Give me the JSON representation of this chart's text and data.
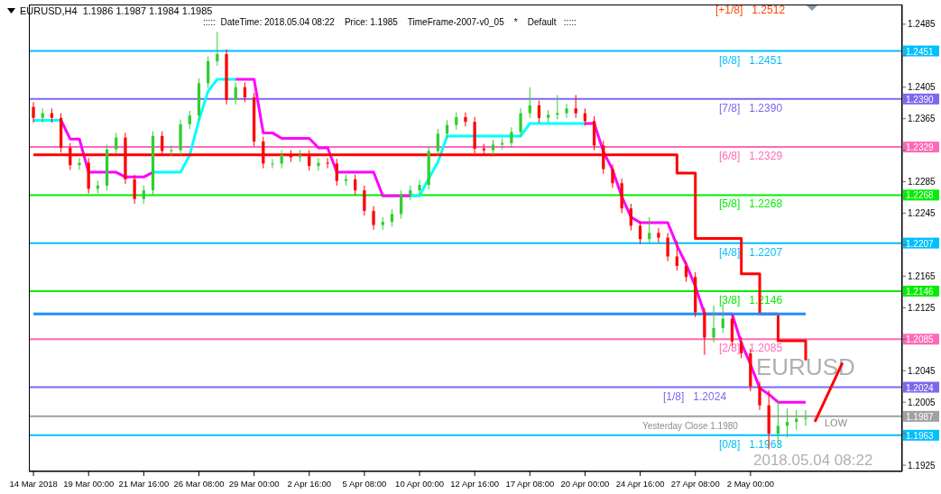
{
  "chart_data": {
    "type": "candlestick",
    "categories": [
      "14 Mar 2018",
      null,
      null,
      null,
      null,
      null,
      "19 Mar 00:00",
      null,
      null,
      null,
      null,
      null,
      "21 Mar 16:00",
      null,
      null,
      null,
      null,
      null,
      "26 Mar 08:00",
      null,
      null,
      null,
      null,
      null,
      "29 Mar 00:00",
      null,
      null,
      null,
      null,
      null,
      "2 Apr 16:00",
      null,
      null,
      null,
      null,
      null,
      "5 Apr 08:00",
      null,
      null,
      null,
      null,
      null,
      "10 Apr 00:00",
      null,
      null,
      null,
      null,
      null,
      "12 Apr 16:00",
      null,
      null,
      null,
      null,
      null,
      "17 Apr 08:00",
      null,
      null,
      null,
      null,
      null,
      "20 Apr 00:00",
      null,
      null,
      null,
      null,
      null,
      "24 Apr 16:00",
      null,
      null,
      null,
      null,
      null,
      "27 Apr 08:00",
      null,
      null,
      null,
      null,
      null,
      "2 May 00:00",
      null,
      null,
      null,
      null,
      null,
      null,
      null,
      null,
      null,
      null,
      null,
      null,
      null,
      null,
      null,
      null
    ],
    "ohlc": [
      [
        1.238,
        1.2386,
        1.236,
        1.2366
      ],
      [
        1.2366,
        1.2378,
        1.236,
        1.2372
      ],
      [
        1.2372,
        1.2378,
        1.236,
        1.2366
      ],
      [
        1.2366,
        1.2372,
        1.2322,
        1.2328
      ],
      [
        1.2328,
        1.2334,
        1.23,
        1.2306
      ],
      [
        1.2306,
        1.2315,
        1.23,
        1.2309
      ],
      [
        1.2309,
        1.2315,
        1.227,
        1.2276
      ],
      [
        1.2276,
        1.2286,
        1.227,
        1.228
      ],
      [
        1.228,
        1.2332,
        1.2274,
        1.2326
      ],
      [
        1.2326,
        1.2347,
        1.232,
        1.2341
      ],
      [
        1.2341,
        1.2347,
        1.2282,
        1.2288
      ],
      [
        1.2288,
        1.2294,
        1.2257,
        1.2263
      ],
      [
        1.2263,
        1.228,
        1.2257,
        1.2274
      ],
      [
        1.2274,
        1.2349,
        1.2268,
        1.2343
      ],
      [
        1.2343,
        1.2349,
        1.2318,
        1.2324
      ],
      [
        1.2324,
        1.2331,
        1.2318,
        1.2325
      ],
      [
        1.2325,
        1.2364,
        1.2319,
        1.2358
      ],
      [
        1.2358,
        1.2375,
        1.2352,
        1.2369
      ],
      [
        1.2369,
        1.2416,
        1.2363,
        1.241
      ],
      [
        1.241,
        1.2444,
        1.2404,
        1.2438
      ],
      [
        1.2438,
        1.2475,
        1.2432,
        1.2447
      ],
      [
        1.2447,
        1.2453,
        1.2383,
        1.2389
      ],
      [
        1.2389,
        1.2411,
        1.2383,
        1.2405
      ],
      [
        1.2405,
        1.2411,
        1.2386,
        1.2392
      ],
      [
        1.2392,
        1.2398,
        1.233,
        1.2336
      ],
      [
        1.2336,
        1.2342,
        1.2302,
        1.2308
      ],
      [
        1.2308,
        1.2314,
        1.2302,
        1.2308
      ],
      [
        1.2308,
        1.2325,
        1.2302,
        1.2319
      ],
      [
        1.2319,
        1.2325,
        1.231,
        1.2316
      ],
      [
        1.2316,
        1.2325,
        1.231,
        1.2319
      ],
      [
        1.2319,
        1.2325,
        1.2299,
        1.2305
      ],
      [
        1.2305,
        1.2315,
        1.2299,
        1.2309
      ],
      [
        1.2309,
        1.2315,
        1.2302,
        1.2308
      ],
      [
        1.2308,
        1.2314,
        1.228,
        1.2286
      ],
      [
        1.2286,
        1.2294,
        1.228,
        1.2288
      ],
      [
        1.2288,
        1.2294,
        1.2268,
        1.2274
      ],
      [
        1.2274,
        1.228,
        1.2242,
        1.2248
      ],
      [
        1.2248,
        1.2254,
        1.2224,
        1.223
      ],
      [
        1.223,
        1.224,
        1.2224,
        1.2234
      ],
      [
        1.2234,
        1.225,
        1.2228,
        1.2244
      ],
      [
        1.2244,
        1.2274,
        1.2238,
        1.2268
      ],
      [
        1.2268,
        1.228,
        1.2262,
        1.2274
      ],
      [
        1.2274,
        1.2287,
        1.2268,
        1.2281
      ],
      [
        1.2281,
        1.233,
        1.2275,
        1.2324
      ],
      [
        1.2324,
        1.2352,
        1.2318,
        1.2346
      ],
      [
        1.2346,
        1.2363,
        1.234,
        1.2357
      ],
      [
        1.2357,
        1.2373,
        1.2351,
        1.2367
      ],
      [
        1.2367,
        1.2373,
        1.2355,
        1.2361
      ],
      [
        1.2361,
        1.2367,
        1.2321,
        1.2327
      ],
      [
        1.2327,
        1.2333,
        1.2319,
        1.2325
      ],
      [
        1.2325,
        1.2338,
        1.2319,
        1.2332
      ],
      [
        1.2332,
        1.234,
        1.2326,
        1.2334
      ],
      [
        1.2334,
        1.2354,
        1.2328,
        1.2348
      ],
      [
        1.2348,
        1.2378,
        1.2342,
        1.2372
      ],
      [
        1.2372,
        1.2405,
        1.2366,
        1.2382
      ],
      [
        1.2382,
        1.2388,
        1.236,
        1.2366
      ],
      [
        1.2366,
        1.2376,
        1.236,
        1.237
      ],
      [
        1.237,
        1.2395,
        1.2364,
        1.2372
      ],
      [
        1.2372,
        1.2384,
        1.2366,
        1.2378
      ],
      [
        1.2378,
        1.2395,
        1.2366,
        1.2372
      ],
      [
        1.2372,
        1.2378,
        1.2356,
        1.2362
      ],
      [
        1.2362,
        1.2368,
        1.2325,
        1.2331
      ],
      [
        1.2331,
        1.2337,
        1.2295,
        1.2301
      ],
      [
        1.2301,
        1.2307,
        1.2277,
        1.2283
      ],
      [
        1.2283,
        1.2289,
        1.2245,
        1.2251
      ],
      [
        1.2251,
        1.2257,
        1.2223,
        1.2229
      ],
      [
        1.2229,
        1.2235,
        1.2206,
        1.2212
      ],
      [
        1.2212,
        1.224,
        1.2206,
        1.222
      ],
      [
        1.222,
        1.2226,
        1.2208,
        1.2214
      ],
      [
        1.2214,
        1.222,
        1.2184,
        1.219
      ],
      [
        1.219,
        1.221,
        1.2172,
        1.2178
      ],
      [
        1.2178,
        1.2184,
        1.2158,
        1.2164
      ],
      [
        1.2164,
        1.217,
        1.2113,
        1.2119
      ],
      [
        1.2119,
        1.2125,
        1.2065,
        1.2087
      ],
      [
        1.2087,
        1.2128,
        1.2081,
        1.2099
      ],
      [
        1.2099,
        1.213,
        1.2093,
        1.2111
      ],
      [
        1.2111,
        1.2117,
        1.2076,
        1.2082
      ],
      [
        1.2082,
        1.2088,
        1.2061,
        1.2067
      ],
      [
        1.2067,
        1.2073,
        1.2019,
        1.2025
      ],
      [
        1.2025,
        1.2031,
        1.1995,
        1.2001
      ],
      [
        1.2001,
        1.202,
        1.1945,
        1.1965
      ],
      [
        1.1965,
        1.2008,
        1.195,
        1.1975
      ],
      [
        1.1975,
        1.1997,
        1.196,
        1.198
      ],
      [
        1.198,
        1.1995,
        1.197,
        1.1984
      ],
      [
        1.1984,
        1.1995,
        1.1975,
        1.1985
      ],
      null,
      null,
      null,
      null,
      null,
      null,
      null,
      null,
      null,
      null
    ],
    "colors": [
      "#ff0000",
      "#32cd32",
      "#ff0000",
      "#ff0000",
      "#ff0000",
      "#32cd32",
      "#ff0000",
      "#32cd32",
      "#32cd32",
      "#32cd32",
      "#ff0000",
      "#ff0000",
      "#32cd32",
      "#32cd32",
      "#ff0000",
      "#32cd32",
      "#32cd32",
      "#32cd32",
      "#32cd32",
      "#32cd32",
      "#32cd32",
      "#ff0000",
      "#32cd32",
      "#ff0000",
      "#ff0000",
      "#ff0000",
      "#32cd32",
      "#32cd32",
      "#ff0000",
      "#32cd32",
      "#ff0000",
      "#32cd32",
      "#ff0000",
      "#ff0000",
      "#32cd32",
      "#ff0000",
      "#ff0000",
      "#ff0000",
      "#32cd32",
      "#32cd32",
      "#32cd32",
      "#32cd32",
      "#32cd32",
      "#32cd32",
      "#32cd32",
      "#32cd32",
      "#32cd32",
      "#ff0000",
      "#ff0000",
      "#ff0000",
      "#32cd32",
      "#32cd32",
      "#32cd32",
      "#32cd32",
      "#32cd32",
      "#ff0000",
      "#32cd32",
      "#32cd32",
      "#32cd32",
      "#ff0000",
      "#ff0000",
      "#ff0000",
      "#ff0000",
      "#ff0000",
      "#ff0000",
      "#ff0000",
      "#ff0000",
      "#32cd32",
      "#ff0000",
      "#ff0000",
      "#ff0000",
      "#ff0000",
      "#ff0000",
      "#ff0000",
      "#32cd32",
      "#32cd32",
      "#ff0000",
      "#ff0000",
      "#ff0000",
      "#ff0000",
      "#ff0000",
      "#32cd32",
      "#32cd32",
      "#32cd32",
      "#32cd32",
      null,
      null,
      null,
      null,
      null,
      null,
      null,
      null,
      null,
      null
    ],
    "series": [
      {
        "type": "line",
        "color": "#00ffff",
        "values": [
          1.2363,
          1.2363,
          1.2363,
          1.2363,
          null,
          null,
          null,
          null,
          null,
          null,
          null,
          null,
          null,
          1.2297,
          1.2297,
          1.2297,
          1.2297,
          1.2319,
          1.2363,
          1.24,
          1.2415,
          1.2415,
          1.2415,
          null,
          null,
          null,
          null,
          null,
          null,
          null,
          null,
          null,
          null,
          null,
          null,
          null,
          null,
          null,
          null,
          null,
          null,
          1.2267,
          1.2267,
          1.2289,
          1.231,
          1.2343,
          1.2343,
          1.2343,
          1.2343,
          1.2343,
          1.2343,
          1.2343,
          1.2343,
          1.2343,
          1.2359,
          1.2359,
          1.2359,
          1.2359,
          1.2359,
          1.2359,
          1.2359,
          null,
          null,
          null,
          null,
          null,
          null,
          null,
          null,
          null,
          null,
          null,
          null,
          null,
          null,
          null,
          null,
          null,
          null,
          null,
          null,
          null,
          null,
          null,
          null,
          null,
          null,
          null,
          null,
          null,
          null,
          null,
          null,
          null,
          null
        ]
      },
      {
        "type": "line",
        "color": "#ff00ff",
        "values": [
          null,
          null,
          null,
          1.2363,
          1.2339,
          1.2339,
          1.2297,
          1.2297,
          1.2297,
          1.2297,
          1.2291,
          1.2291,
          1.2291,
          1.2297,
          null,
          null,
          null,
          null,
          null,
          null,
          null,
          null,
          1.2415,
          1.2415,
          1.2415,
          1.2347,
          1.2347,
          1.234,
          1.234,
          1.234,
          1.234,
          1.2328,
          1.2328,
          1.2297,
          1.2297,
          1.2297,
          1.2297,
          1.2297,
          1.2267,
          1.2267,
          1.2267,
          1.2267,
          null,
          null,
          null,
          null,
          null,
          null,
          null,
          null,
          null,
          null,
          null,
          null,
          null,
          null,
          null,
          null,
          null,
          null,
          1.2359,
          1.2359,
          1.2323,
          1.23,
          1.2266,
          1.224,
          1.2233,
          1.2233,
          1.2233,
          1.2233,
          1.2204,
          1.218,
          1.2152,
          1.2117,
          1.2117,
          1.2117,
          1.2117,
          1.208,
          1.2053,
          1.2023,
          1.2015,
          1.2005,
          1.2005,
          1.2005,
          1.2005,
          null,
          null,
          null,
          null,
          null,
          null,
          null,
          null,
          null,
          null
        ]
      },
      {
        "type": "step",
        "color": "#ff0000",
        "values": [
          1.2319,
          1.2319,
          1.2319,
          1.2319,
          1.2319,
          1.2319,
          1.2319,
          1.2319,
          1.2319,
          1.2319,
          1.2319,
          1.2319,
          1.2319,
          1.2319,
          1.2319,
          1.2319,
          1.2319,
          1.2319,
          1.2319,
          1.2319,
          1.2319,
          1.2319,
          1.2319,
          1.2319,
          1.2319,
          1.2319,
          1.2319,
          1.2319,
          1.2319,
          1.2319,
          1.2319,
          1.2319,
          1.2319,
          1.2319,
          1.2319,
          1.2319,
          1.2319,
          1.2319,
          1.2319,
          1.2319,
          1.2319,
          1.2319,
          1.2319,
          1.2319,
          1.2319,
          1.2319,
          1.2319,
          1.2319,
          1.2319,
          1.2319,
          1.2319,
          1.2319,
          1.2319,
          1.2319,
          1.2319,
          1.2319,
          1.2319,
          1.2319,
          1.2319,
          1.2319,
          1.2319,
          1.2319,
          1.2319,
          1.2319,
          1.2319,
          1.2319,
          1.2319,
          1.2319,
          1.2319,
          1.2319,
          1.2296,
          1.2296,
          1.2213,
          1.2213,
          1.2213,
          1.2213,
          1.2213,
          1.2168,
          1.2168,
          1.2117,
          1.2117,
          1.2083,
          1.2083,
          1.2083,
          1.2058,
          null,
          null,
          null,
          null,
          null,
          null,
          null,
          null,
          null,
          null
        ]
      },
      {
        "type": "line",
        "color": "#1e90ff",
        "values": [
          1.2117,
          1.2117,
          1.2117,
          1.2117,
          1.2117,
          1.2117,
          1.2117,
          1.2117,
          1.2117,
          1.2117,
          1.2117,
          1.2117,
          1.2117,
          1.2117,
          1.2117,
          1.2117,
          1.2117,
          1.2117,
          1.2117,
          1.2117,
          1.2117,
          1.2117,
          1.2117,
          1.2117,
          1.2117,
          1.2117,
          1.2117,
          1.2117,
          1.2117,
          1.2117,
          1.2117,
          1.2117,
          1.2117,
          1.2117,
          1.2117,
          1.2117,
          1.2117,
          1.2117,
          1.2117,
          1.2117,
          1.2117,
          1.2117,
          1.2117,
          1.2117,
          1.2117,
          1.2117,
          1.2117,
          1.2117,
          1.2117,
          1.2117,
          1.2117,
          1.2117,
          1.2117,
          1.2117,
          1.2117,
          1.2117,
          1.2117,
          1.2117,
          1.2117,
          1.2117,
          1.2117,
          1.2117,
          1.2117,
          1.2117,
          1.2117,
          1.2117,
          1.2117,
          1.2117,
          1.2117,
          1.2117,
          1.2117,
          1.2117,
          1.2117,
          1.2117,
          1.2117,
          1.2117,
          1.2117,
          1.2117,
          1.2117,
          1.2117,
          1.2117,
          1.2117,
          1.2117,
          1.2117,
          1.2117,
          null,
          null,
          null,
          null,
          null,
          null,
          null,
          null,
          null,
          null
        ]
      },
      {
        "type": "line",
        "color": "#ff0000",
        "values": [
          null,
          null,
          null,
          null,
          null,
          null,
          null,
          null,
          null,
          null,
          null,
          null,
          null,
          null,
          null,
          null,
          null,
          null,
          null,
          null,
          null,
          null,
          null,
          null,
          null,
          null,
          null,
          null,
          null,
          null,
          null,
          null,
          null,
          null,
          null,
          null,
          null,
          null,
          null,
          null,
          null,
          null,
          null,
          null,
          null,
          null,
          null,
          null,
          null,
          null,
          null,
          null,
          null,
          null,
          null,
          null,
          null,
          null,
          null,
          null,
          null,
          null,
          null,
          null,
          null,
          null,
          null,
          null,
          null,
          null,
          null,
          null,
          null,
          null,
          null,
          null,
          null,
          null,
          null,
          null,
          null,
          null,
          null,
          null,
          null,
          1.198,
          1.2005,
          1.203,
          1.2055,
          null,
          null,
          null,
          null,
          null,
          null
        ]
      }
    ],
    "ylim": [
      1.1917,
      1.251
    ],
    "yticks": [
      1.1925,
      {
        "value": 1.1965,
        "label": null
      },
      1.2005,
      1.2045,
      {
        "value": 1.2085,
        "label": null
      },
      1.2125,
      1.2165,
      {
        "value": 1.2205,
        "label": null
      },
      1.2245,
      1.2285,
      {
        "value": 1.2325,
        "label": null
      },
      1.2365,
      1.2405,
      {
        "value": 1.2445,
        "label": null
      },
      1.2485
    ],
    "ref_lines": [
      {
        "axis": "y",
        "value": 1.2451,
        "label": "1.2451",
        "color": "#00bfff"
      },
      {
        "axis": "y",
        "value": 1.239,
        "label": "1.2390",
        "color": "#7b68ee"
      },
      {
        "axis": "y",
        "value": 1.2329,
        "label": "1.2329",
        "color": "#ff69b4"
      },
      {
        "axis": "y",
        "value": 1.2268,
        "label": "1.2268",
        "color": "#00ee00"
      },
      {
        "axis": "y",
        "value": 1.2207,
        "label": "1.2207",
        "color": "#00bfff"
      },
      {
        "axis": "y",
        "value": 1.2146,
        "label": "1.2146",
        "color": "#00ee00"
      },
      {
        "axis": "y",
        "value": 1.2085,
        "label": "1.2085",
        "color": "#ff69b4"
      },
      {
        "axis": "y",
        "value": 1.2024,
        "label": "1.2024",
        "color": "#7b68ee"
      },
      {
        "axis": "y",
        "value": 1.1963,
        "label": "1.1963",
        "color": "#00bfff"
      },
      {
        "axis": "y",
        "value": 1.1987,
        "label": "1.1987",
        "color": "#a0a0a0"
      }
    ],
    "annotations": [
      "EURUSD,H4  1.1986 1.1987 1.1984 1.1985",
      ":::::  DateTime: 2018.05.04 08:22    Price: 1.1985    TimeFrame-2007-v0_05    *    Default   :::::",
      "[+1/8]   1.2512",
      {
        "text": "[8/8]   1.2451",
        "y": 1.2451
      },
      {
        "text": "[7/8]   1.2390",
        "y": 1.239
      },
      {
        "text": "[6/8]   1.2329",
        "y": 1.2329
      },
      {
        "text": "[5/8]   1.2268",
        "y": 1.2268
      },
      {
        "text": "[4/8]   1.2207",
        "y": 1.2207
      },
      {
        "text": "[3/8]   1.2146",
        "y": 1.2146
      },
      {
        "text": "[2/8]   1.2085",
        "y": 1.2085
      },
      {
        "text": "[1/8]   1.2024",
        "y": 1.2024
      },
      {
        "text": "[0/8]   1.1963",
        "y": 1.1963
      },
      "EURUSD",
      "Yesterday Close 1.1980",
      "LOW",
      "2018.05.04 08:22"
    ]
  }
}
